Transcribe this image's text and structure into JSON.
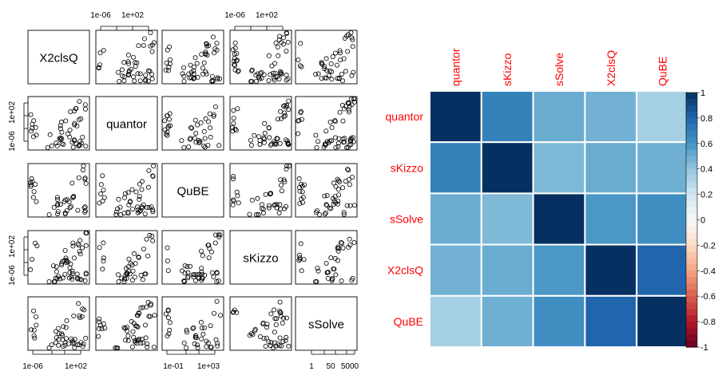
{
  "chart_data": [
    {
      "type": "scatter",
      "subtype": "scatterplot-matrix",
      "variables": [
        "X2clsQ",
        "quantor",
        "QuBE",
        "sKizzo",
        "sSolve"
      ],
      "axis_scale": "log",
      "tick_labels": {
        "top": [
          [
            "1e-06",
            "1e+02"
          ],
          [
            "1e-06",
            "1e+02"
          ]
        ],
        "left": [
          [
            "1e+02",
            "1e-06"
          ],
          [
            "1e+02",
            "1e-06"
          ]
        ],
        "bottom": [
          [
            "1e-06",
            "1e+02"
          ],
          [
            "1e-01",
            "1e+03"
          ],
          [
            "1",
            "50",
            "5000"
          ]
        ]
      },
      "marker": "open-circle",
      "grid": false
    },
    {
      "type": "heatmap",
      "subtype": "correlation-matrix",
      "rows": [
        "quantor",
        "sKizzo",
        "sSolve",
        "X2clsQ",
        "QuBE"
      ],
      "columns": [
        "quantor",
        "sKizzo",
        "sSolve",
        "X2clsQ",
        "QuBE"
      ],
      "values": [
        [
          1.0,
          0.68,
          0.5,
          0.48,
          0.34
        ],
        [
          0.68,
          1.0,
          0.45,
          0.5,
          0.49
        ],
        [
          0.5,
          0.45,
          1.0,
          0.58,
          0.62
        ],
        [
          0.48,
          0.5,
          0.58,
          1.0,
          0.8
        ],
        [
          0.34,
          0.49,
          0.62,
          0.8,
          1.0
        ]
      ],
      "label_color": "#ff0000",
      "colorbar": {
        "range": [
          -1,
          1
        ],
        "ticks": [
          "1",
          "0.8",
          "0.6",
          "0.4",
          "0.2",
          "0",
          "-0.2",
          "-0.4",
          "-0.6",
          "-0.8",
          "-1"
        ],
        "colors_low_to_high": [
          "#67001f",
          "#b2182b",
          "#d6604d",
          "#f4a582",
          "#fddbc7",
          "#f7f7f7",
          "#d1e5f0",
          "#92c5de",
          "#4393c3",
          "#2166ac",
          "#053061"
        ]
      },
      "legend": "right",
      "grid": true
    }
  ]
}
